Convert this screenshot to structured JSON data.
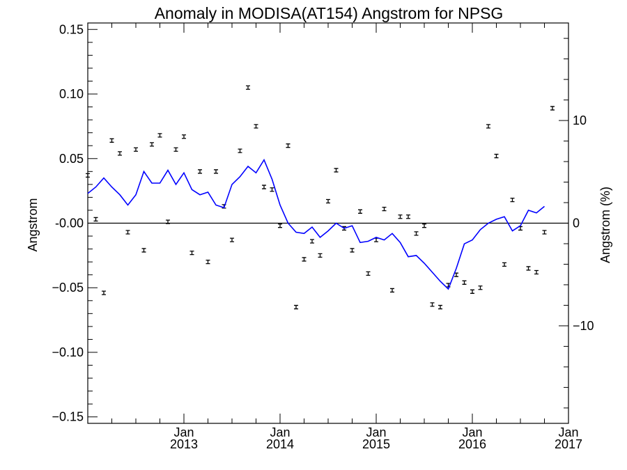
{
  "chart_data": {
    "type": "scatter",
    "title": "Anomaly in MODISA(AT154) Angstrom for NPSG",
    "ylabel": "Angstrom",
    "ylabel_right": "Angstrom (%)",
    "xlabel": "",
    "ylim": [
      -0.155,
      0.155
    ],
    "ylim_right": [
      -19.5,
      19.5
    ],
    "xlim": [
      "2012-01",
      "2017-01"
    ],
    "y_ticks": [
      {
        "value": 0.15,
        "label": "0.15"
      },
      {
        "value": 0.1,
        "label": "0.10"
      },
      {
        "value": 0.05,
        "label": "0.05"
      },
      {
        "value": 0.0,
        "label": "-0.00"
      },
      {
        "value": -0.05,
        "label": "−0.05"
      },
      {
        "value": -0.1,
        "label": "−0.10"
      },
      {
        "value": -0.15,
        "label": "−0.15"
      }
    ],
    "y_ticks_right": [
      {
        "value": 10,
        "label": "10"
      },
      {
        "value": 0,
        "label": "0"
      },
      {
        "value": -10,
        "label": "−10"
      }
    ],
    "x_ticks": [
      {
        "date": "2013-01",
        "month": "Jan",
        "year": "2013"
      },
      {
        "date": "2014-01",
        "month": "Jan",
        "year": "2014"
      },
      {
        "date": "2015-01",
        "month": "Jan",
        "year": "2015"
      },
      {
        "date": "2016-01",
        "month": "Jan",
        "year": "2016"
      },
      {
        "date": "2017-01",
        "month": "Jan",
        "year": "2017"
      }
    ],
    "zero_line": true,
    "grid": false,
    "series": [
      {
        "kind": "points_with_error_bars",
        "color": "#000000",
        "points": [
          {
            "x": "2012-01",
            "y": 0.037
          },
          {
            "x": "2012-02",
            "y": 0.003
          },
          {
            "x": "2012-03",
            "y": -0.054
          },
          {
            "x": "2012-04",
            "y": 0.064
          },
          {
            "x": "2012-05",
            "y": 0.054
          },
          {
            "x": "2012-06",
            "y": -0.007
          },
          {
            "x": "2012-07",
            "y": 0.057
          },
          {
            "x": "2012-08",
            "y": -0.021
          },
          {
            "x": "2012-09",
            "y": 0.061
          },
          {
            "x": "2012-10",
            "y": 0.068
          },
          {
            "x": "2012-11",
            "y": 0.001
          },
          {
            "x": "2012-12",
            "y": 0.057
          },
          {
            "x": "2013-01",
            "y": 0.067
          },
          {
            "x": "2013-02",
            "y": -0.023
          },
          {
            "x": "2013-03",
            "y": 0.04
          },
          {
            "x": "2013-04",
            "y": -0.03
          },
          {
            "x": "2013-05",
            "y": 0.04
          },
          {
            "x": "2013-06",
            "y": 0.013
          },
          {
            "x": "2013-07",
            "y": -0.013
          },
          {
            "x": "2013-08",
            "y": 0.056
          },
          {
            "x": "2013-09",
            "y": 0.105
          },
          {
            "x": "2013-10",
            "y": 0.075
          },
          {
            "x": "2013-11",
            "y": 0.028
          },
          {
            "x": "2013-12",
            "y": 0.026
          },
          {
            "x": "2014-01",
            "y": -0.002
          },
          {
            "x": "2014-02",
            "y": 0.06
          },
          {
            "x": "2014-03",
            "y": -0.065
          },
          {
            "x": "2014-04",
            "y": -0.028
          },
          {
            "x": "2014-05",
            "y": -0.014
          },
          {
            "x": "2014-06",
            "y": -0.025
          },
          {
            "x": "2014-07",
            "y": 0.017
          },
          {
            "x": "2014-08",
            "y": 0.041
          },
          {
            "x": "2014-09",
            "y": -0.004
          },
          {
            "x": "2014-10",
            "y": -0.021
          },
          {
            "x": "2014-11",
            "y": 0.009
          },
          {
            "x": "2014-12",
            "y": -0.039
          },
          {
            "x": "2015-01",
            "y": -0.013
          },
          {
            "x": "2015-02",
            "y": 0.011
          },
          {
            "x": "2015-03",
            "y": -0.052
          },
          {
            "x": "2015-04",
            "y": 0.005
          },
          {
            "x": "2015-05",
            "y": 0.005
          },
          {
            "x": "2015-06",
            "y": -0.008
          },
          {
            "x": "2015-07",
            "y": -0.002
          },
          {
            "x": "2015-08",
            "y": -0.063
          },
          {
            "x": "2015-09",
            "y": -0.065
          },
          {
            "x": "2015-10",
            "y": -0.048
          },
          {
            "x": "2015-11",
            "y": -0.04
          },
          {
            "x": "2015-12",
            "y": -0.046
          },
          {
            "x": "2016-01",
            "y": -0.053
          },
          {
            "x": "2016-02",
            "y": -0.05
          },
          {
            "x": "2016-03",
            "y": 0.075
          },
          {
            "x": "2016-04",
            "y": 0.052
          },
          {
            "x": "2016-05",
            "y": -0.032
          },
          {
            "x": "2016-06",
            "y": 0.018
          },
          {
            "x": "2016-07",
            "y": -0.004
          },
          {
            "x": "2016-08",
            "y": -0.035
          },
          {
            "x": "2016-09",
            "y": -0.038
          },
          {
            "x": "2016-10",
            "y": -0.007
          },
          {
            "x": "2016-11",
            "y": 0.089
          }
        ]
      },
      {
        "kind": "line",
        "color": "#0000ff",
        "points": [
          {
            "x": "2012-01",
            "y": 0.023
          },
          {
            "x": "2012-02",
            "y": 0.028
          },
          {
            "x": "2012-03",
            "y": 0.035
          },
          {
            "x": "2012-04",
            "y": 0.028
          },
          {
            "x": "2012-05",
            "y": 0.022
          },
          {
            "x": "2012-06",
            "y": 0.014
          },
          {
            "x": "2012-07",
            "y": 0.022
          },
          {
            "x": "2012-08",
            "y": 0.04
          },
          {
            "x": "2012-09",
            "y": 0.031
          },
          {
            "x": "2012-10",
            "y": 0.031
          },
          {
            "x": "2012-11",
            "y": 0.041
          },
          {
            "x": "2012-12",
            "y": 0.03
          },
          {
            "x": "2013-01",
            "y": 0.039
          },
          {
            "x": "2013-02",
            "y": 0.026
          },
          {
            "x": "2013-03",
            "y": 0.022
          },
          {
            "x": "2013-04",
            "y": 0.024
          },
          {
            "x": "2013-05",
            "y": 0.014
          },
          {
            "x": "2013-06",
            "y": 0.012
          },
          {
            "x": "2013-07",
            "y": 0.03
          },
          {
            "x": "2013-08",
            "y": 0.036
          },
          {
            "x": "2013-09",
            "y": 0.044
          },
          {
            "x": "2013-10",
            "y": 0.039
          },
          {
            "x": "2013-11",
            "y": 0.049
          },
          {
            "x": "2013-12",
            "y": 0.034
          },
          {
            "x": "2014-01",
            "y": 0.014
          },
          {
            "x": "2014-02",
            "y": 0.0
          },
          {
            "x": "2014-03",
            "y": -0.007
          },
          {
            "x": "2014-04",
            "y": -0.008
          },
          {
            "x": "2014-05",
            "y": -0.003
          },
          {
            "x": "2014-06",
            "y": -0.011
          },
          {
            "x": "2014-07",
            "y": -0.006
          },
          {
            "x": "2014-08",
            "y": 0.0
          },
          {
            "x": "2014-09",
            "y": -0.004
          },
          {
            "x": "2014-10",
            "y": -0.002
          },
          {
            "x": "2014-11",
            "y": -0.015
          },
          {
            "x": "2014-12",
            "y": -0.014
          },
          {
            "x": "2015-01",
            "y": -0.011
          },
          {
            "x": "2015-02",
            "y": -0.013
          },
          {
            "x": "2015-03",
            "y": -0.008
          },
          {
            "x": "2015-04",
            "y": -0.015
          },
          {
            "x": "2015-05",
            "y": -0.026
          },
          {
            "x": "2015-06",
            "y": -0.025
          },
          {
            "x": "2015-07",
            "y": -0.031
          },
          {
            "x": "2015-08",
            "y": -0.038
          },
          {
            "x": "2015-09",
            "y": -0.045
          },
          {
            "x": "2015-10",
            "y": -0.051
          },
          {
            "x": "2015-11",
            "y": -0.035
          },
          {
            "x": "2015-12",
            "y": -0.016
          },
          {
            "x": "2016-01",
            "y": -0.013
          },
          {
            "x": "2016-02",
            "y": -0.005
          },
          {
            "x": "2016-03",
            "y": 0.0
          },
          {
            "x": "2016-04",
            "y": 0.003
          },
          {
            "x": "2016-05",
            "y": 0.005
          },
          {
            "x": "2016-06",
            "y": -0.006
          },
          {
            "x": "2016-07",
            "y": -0.002
          },
          {
            "x": "2016-08",
            "y": 0.01
          },
          {
            "x": "2016-09",
            "y": 0.008
          },
          {
            "x": "2016-10",
            "y": 0.013
          }
        ]
      }
    ]
  }
}
